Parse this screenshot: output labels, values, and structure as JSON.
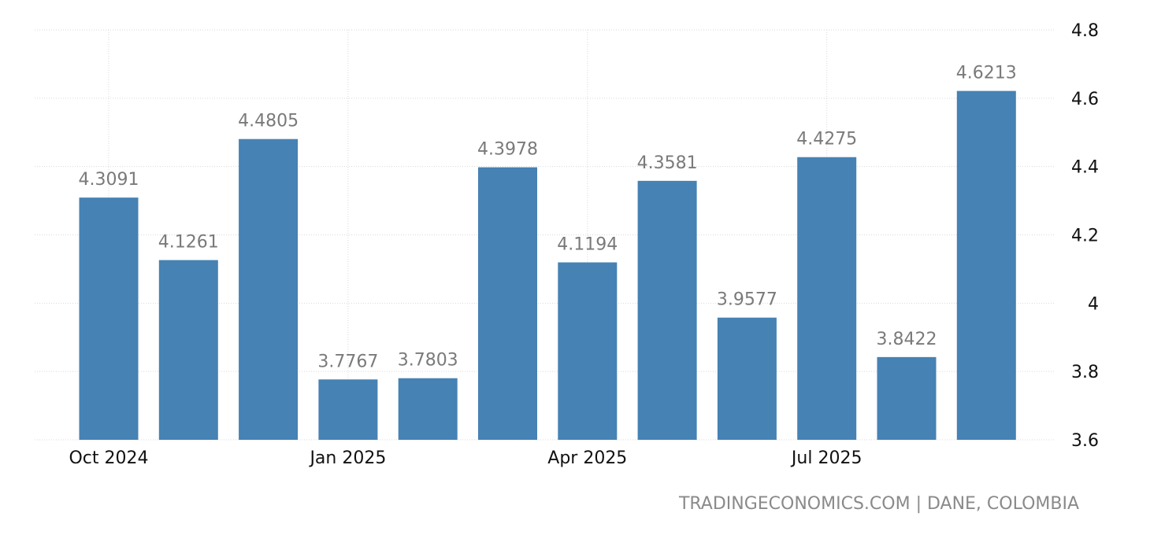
{
  "chart_data": {
    "type": "bar",
    "categories": [
      "2024-10",
      "2024-11",
      "2024-12",
      "2025-01",
      "2025-02",
      "2025-03",
      "2025-04",
      "2025-05",
      "2025-06",
      "2025-07",
      "2025-08",
      "2025-09"
    ],
    "values": [
      4.3091,
      4.1261,
      4.4805,
      3.7767,
      3.7803,
      4.3978,
      4.1194,
      4.3581,
      3.9577,
      4.4275,
      3.8422,
      4.6213
    ],
    "value_labels": [
      "4.3091",
      "4.1261",
      "4.4805",
      "3.7767",
      "3.7803",
      "4.3978",
      "4.1194",
      "4.3581",
      "3.9577",
      "4.4275",
      "3.8422",
      "4.6213"
    ],
    "x_tick_labels": [
      {
        "label": "Oct 2024",
        "category": "2024-10"
      },
      {
        "label": "Jan 2025",
        "category": "2025-01"
      },
      {
        "label": "Apr 2025",
        "category": "2025-04"
      },
      {
        "label": "Jul 2025",
        "category": "2025-07"
      }
    ],
    "y_ticks": [
      3.6,
      3.8,
      4,
      4.2,
      4.4,
      4.6,
      4.8
    ],
    "y_tick_labels": [
      "3.6",
      "3.8",
      "4",
      "4.2",
      "4.4",
      "4.6",
      "4.8"
    ],
    "ylim": [
      3.6,
      4.8
    ],
    "title": "",
    "xlabel": "",
    "ylabel": "",
    "grid": true,
    "y_axis_position": "right",
    "bar_color": "#4682b4"
  },
  "source": "TRADINGECONOMICS.COM | DANE, COLOMBIA"
}
